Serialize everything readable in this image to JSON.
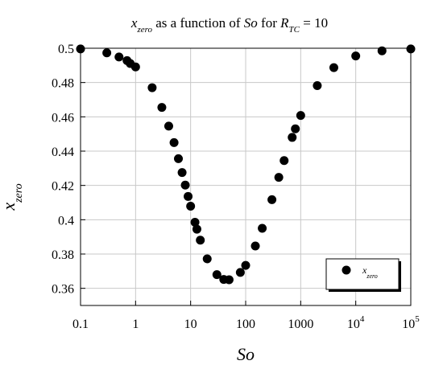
{
  "chart_data": {
    "type": "scatter",
    "title": {
      "prefix": "x",
      "prefix_sub": "zero",
      "middle": " as a function of ",
      "so": "So",
      "for_text": " for ",
      "r": "R",
      "r_sub": "TC",
      "suffix": " = 10"
    },
    "xlabel": "So",
    "ylabel": {
      "main": "x",
      "sub": "zero"
    },
    "xscale": "log",
    "xlim": [
      0.1,
      100000
    ],
    "ylim": [
      0.35,
      0.5
    ],
    "grid": true,
    "legend": {
      "placement": "bottom-right",
      "label_main": "x",
      "label_sub": "zero"
    },
    "x_ticks": [
      {
        "value": 0.1,
        "label": "0.1"
      },
      {
        "value": 1,
        "label": "1"
      },
      {
        "value": 10,
        "label": "10"
      },
      {
        "value": 100,
        "label": "100"
      },
      {
        "value": 1000,
        "label": "1000"
      },
      {
        "value": 10000,
        "label": "10",
        "exp": "4"
      },
      {
        "value": 100000,
        "label": "10",
        "exp": "5"
      }
    ],
    "y_ticks": [
      {
        "value": 0.36,
        "label": "0.36"
      },
      {
        "value": 0.38,
        "label": "0.38"
      },
      {
        "value": 0.4,
        "label": "0.4"
      },
      {
        "value": 0.42,
        "label": "0.42"
      },
      {
        "value": 0.44,
        "label": "0.44"
      },
      {
        "value": 0.46,
        "label": "0.46"
      },
      {
        "value": 0.48,
        "label": "0.48"
      },
      {
        "value": 0.5,
        "label": "0.5"
      }
    ],
    "series": [
      {
        "name": "xzero",
        "color": "#000000",
        "points": [
          [
            0.1,
            0.4996
          ],
          [
            0.3,
            0.4973
          ],
          [
            0.5,
            0.4949
          ],
          [
            0.7,
            0.4928
          ],
          [
            0.8,
            0.4911
          ],
          [
            1.0,
            0.4891
          ],
          [
            2.0,
            0.477
          ],
          [
            3.0,
            0.4655
          ],
          [
            4.0,
            0.4546
          ],
          [
            5.0,
            0.445
          ],
          [
            6.0,
            0.4356
          ],
          [
            7.0,
            0.4275
          ],
          [
            8.0,
            0.4202
          ],
          [
            9.0,
            0.4136
          ],
          [
            10.0,
            0.4079
          ],
          [
            12.0,
            0.3985
          ],
          [
            13.0,
            0.3945
          ],
          [
            15.0,
            0.3881
          ],
          [
            20.0,
            0.3772
          ],
          [
            30.0,
            0.368
          ],
          [
            40.0,
            0.3652
          ],
          [
            50.0,
            0.365
          ],
          [
            80.0,
            0.3693
          ],
          [
            100.0,
            0.3734
          ],
          [
            150.0,
            0.3847
          ],
          [
            200.0,
            0.395
          ],
          [
            300.0,
            0.4117
          ],
          [
            400.0,
            0.4247
          ],
          [
            500.0,
            0.4345
          ],
          [
            700.0,
            0.448
          ],
          [
            800.0,
            0.453
          ],
          [
            1000.0,
            0.4608
          ],
          [
            2000.0,
            0.4782
          ],
          [
            4000.0,
            0.4887
          ],
          [
            10000.0,
            0.4955
          ],
          [
            30000.0,
            0.4985
          ],
          [
            100000.0,
            0.4996
          ]
        ]
      }
    ]
  }
}
